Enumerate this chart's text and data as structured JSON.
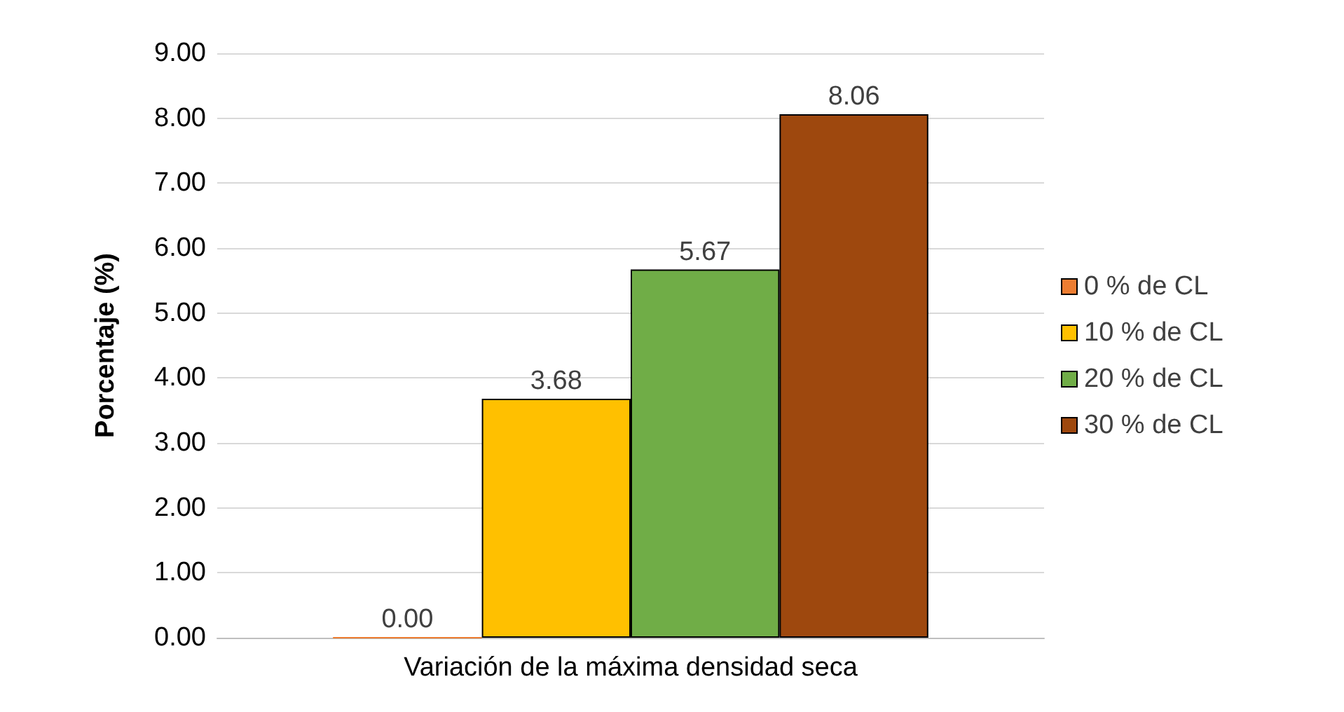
{
  "chart_data": {
    "type": "bar",
    "ylabel": "Porcentaje (%)",
    "categories": [
      "Variación de la máxima densidad seca"
    ],
    "series": [
      {
        "name": "0 % de CL",
        "color": "#ed7d31",
        "values": [
          0.0
        ],
        "value_labels": [
          "0.00"
        ]
      },
      {
        "name": "10 % de CL",
        "color": "#ffc000",
        "values": [
          3.68
        ],
        "value_labels": [
          "3.68"
        ]
      },
      {
        "name": "20 % de CL",
        "color": "#70ad47",
        "values": [
          5.67
        ],
        "value_labels": [
          "5.67"
        ]
      },
      {
        "name": "30 % de CL",
        "color": "#9e480e",
        "values": [
          8.06
        ],
        "value_labels": [
          "8.06"
        ]
      }
    ],
    "ylim": [
      0,
      9
    ],
    "yticks": [
      {
        "value": 0,
        "label": "0.00"
      },
      {
        "value": 1,
        "label": "1.00"
      },
      {
        "value": 2,
        "label": "2.00"
      },
      {
        "value": 3,
        "label": "3.00"
      },
      {
        "value": 4,
        "label": "4.00"
      },
      {
        "value": 5,
        "label": "5.00"
      },
      {
        "value": 6,
        "label": "6.00"
      },
      {
        "value": 7,
        "label": "7.00"
      },
      {
        "value": 8,
        "label": "8.00"
      },
      {
        "value": 9,
        "label": "9.00"
      }
    ],
    "grid": "y",
    "legend": "right"
  }
}
